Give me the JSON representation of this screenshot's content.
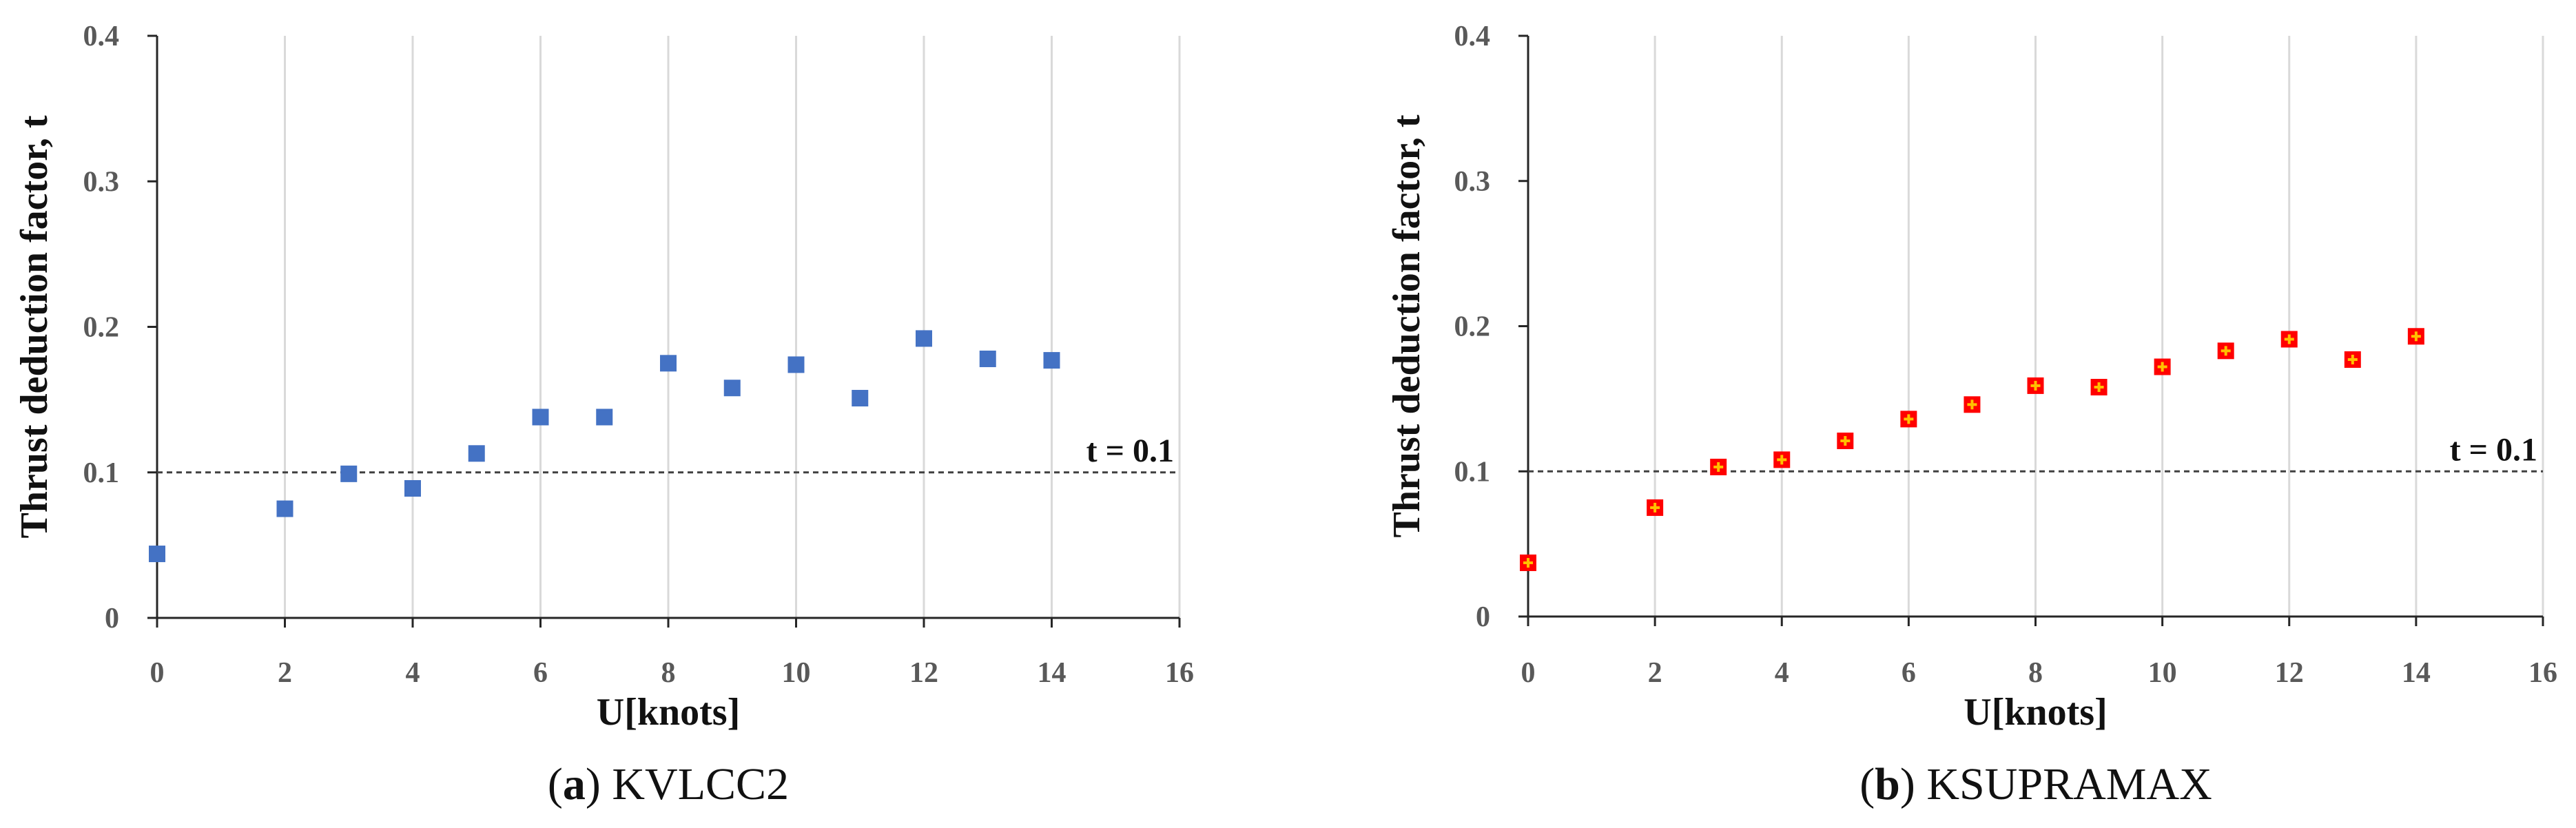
{
  "chart_data": [
    {
      "type": "scatter",
      "caption_letter": "a",
      "caption_text": "KVLCC2",
      "xlabel": "U[knots]",
      "ylabel": "Thrust deduction factor, t",
      "xlim": [
        0,
        16
      ],
      "ylim": [
        0,
        0.4
      ],
      "xticks": [
        "0",
        "2",
        "4",
        "6",
        "8",
        "10",
        "12",
        "14",
        "16"
      ],
      "yticks": [
        "0",
        "0.1",
        "0.2",
        "0.3",
        "0.4"
      ],
      "grid": "vertical",
      "reference_line": {
        "y": 0.1,
        "label": "t = 0.1",
        "style": "dashed"
      },
      "marker_color": "#4472C4",
      "marker": "square",
      "points": [
        {
          "x": 0,
          "y": 0.044
        },
        {
          "x": 2,
          "y": 0.075
        },
        {
          "x": 3,
          "y": 0.099
        },
        {
          "x": 4,
          "y": 0.089
        },
        {
          "x": 5,
          "y": 0.113
        },
        {
          "x": 6,
          "y": 0.138
        },
        {
          "x": 7,
          "y": 0.138
        },
        {
          "x": 8,
          "y": 0.175
        },
        {
          "x": 9,
          "y": 0.158
        },
        {
          "x": 10,
          "y": 0.174
        },
        {
          "x": 11,
          "y": 0.151
        },
        {
          "x": 12,
          "y": 0.192
        },
        {
          "x": 13,
          "y": 0.178
        },
        {
          "x": 14,
          "y": 0.177
        }
      ]
    },
    {
      "type": "scatter",
      "caption_letter": "b",
      "caption_text": "KSUPRAMAX",
      "xlabel": "U[knots]",
      "ylabel": "Thrust deduction factor, t",
      "xlim": [
        0,
        16
      ],
      "ylim": [
        0,
        0.4
      ],
      "xticks": [
        "0",
        "2",
        "4",
        "6",
        "8",
        "10",
        "12",
        "14",
        "16"
      ],
      "yticks": [
        "0",
        "0.1",
        "0.2",
        "0.3",
        "0.4"
      ],
      "grid": "vertical",
      "reference_line": {
        "y": 0.1,
        "label": "t = 0.1",
        "style": "dashed"
      },
      "marker_color": "#FF0000",
      "marker_inner_color": "#FFC000",
      "marker": "square-with-cross",
      "points": [
        {
          "x": 0,
          "y": 0.037
        },
        {
          "x": 2,
          "y": 0.075
        },
        {
          "x": 3,
          "y": 0.103
        },
        {
          "x": 4,
          "y": 0.108
        },
        {
          "x": 5,
          "y": 0.121
        },
        {
          "x": 6,
          "y": 0.136
        },
        {
          "x": 7,
          "y": 0.146
        },
        {
          "x": 8,
          "y": 0.159
        },
        {
          "x": 9,
          "y": 0.158
        },
        {
          "x": 10,
          "y": 0.172
        },
        {
          "x": 11,
          "y": 0.183
        },
        {
          "x": 12,
          "y": 0.191
        },
        {
          "x": 13,
          "y": 0.177
        },
        {
          "x": 14,
          "y": 0.193
        }
      ]
    }
  ]
}
